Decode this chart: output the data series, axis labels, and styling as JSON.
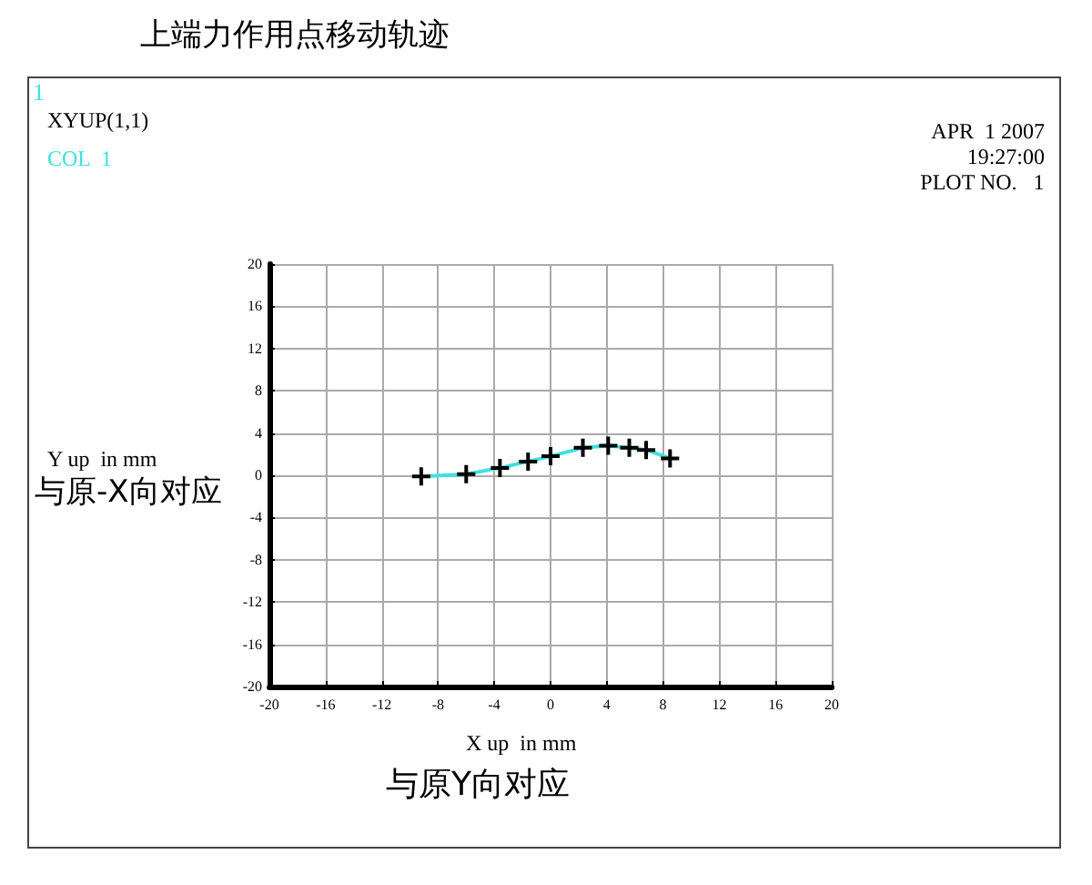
{
  "chart_data": {
    "type": "line",
    "title": "上端力作用点移动轨迹",
    "xlabel": "X up  in mm",
    "ylabel": "Y up  in mm",
    "annotations": [
      "1",
      "XYUP(1,1)",
      "COL  1",
      "APR  1 2007",
      "19:27:00",
      "PLOT NO.   1",
      "与原-X向对应",
      "与原Y向对应"
    ],
    "x": [
      -9.2,
      -6.0,
      -3.6,
      -1.6,
      0.0,
      2.3,
      4.1,
      5.6,
      6.8,
      8.5
    ],
    "series": [
      {
        "color": "#40e0e0",
        "values": [
          -0.1,
          0.1,
          0.7,
          1.3,
          1.8,
          2.6,
          2.8,
          2.6,
          2.4,
          1.6
        ]
      }
    ],
    "xlim": [
      -20,
      20
    ],
    "xticks": [
      -20,
      -16,
      -12,
      -8,
      -4,
      0,
      4,
      8,
      12,
      16,
      20
    ],
    "ylim": [
      -20,
      20
    ],
    "yticks": [
      -20,
      -16,
      -12,
      -8,
      -4,
      0,
      4,
      8,
      12,
      16,
      20
    ],
    "grid": true,
    "marker": "cross",
    "line_style": "solid"
  }
}
